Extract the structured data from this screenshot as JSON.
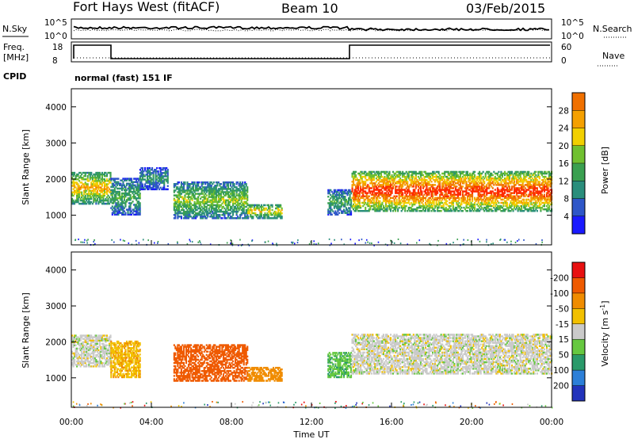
{
  "header": {
    "station": "Fort Hays West (fitACF)",
    "beam": "Beam 10",
    "date": "03/Feb/2015"
  },
  "noise_panel": {
    "left_label": "N.Sky",
    "right_label": "N.Search",
    "left_ticks": [
      "10^5",
      "10^0"
    ],
    "right_ticks": [
      "10^5",
      "10^0"
    ]
  },
  "freq_panel": {
    "left_label_line1": "Freq.",
    "left_label_line2": "[MHz]",
    "right_label": "Nave",
    "left_ticks": [
      "18",
      "8"
    ],
    "right_ticks": [
      "60",
      "0"
    ]
  },
  "cpid": {
    "label": "CPID",
    "value": "normal (fast) 151 IF"
  },
  "axes": {
    "ylabel": "Slant Range [km]",
    "xlabel": "Time UT",
    "yticks": [
      "1000",
      "2000",
      "3000",
      "4000"
    ],
    "xticks": [
      "00:00",
      "04:00",
      "08:00",
      "12:00",
      "16:00",
      "20:00",
      "00:00"
    ]
  },
  "colors": {
    "power": [
      "#1a1aff",
      "#2e56c8",
      "#2a8e7c",
      "#3aa050",
      "#70c030",
      "#f2d000",
      "#f5a000",
      "#f07000",
      "#ff2a00"
    ],
    "velocity": [
      "#2233bb",
      "#2c7fd8",
      "#2a9a6a",
      "#66c840",
      "#cacaca",
      "#f2c000",
      "#f08c00",
      "#ef5a00",
      "#e81010"
    ]
  },
  "chart_data": [
    {
      "type": "heatmap",
      "title": "Power",
      "colorbar_label": "Power [dB]",
      "colorbar_ticks": [
        "4",
        "8",
        "12",
        "16",
        "20",
        "24",
        "28"
      ],
      "clim": [
        0,
        30
      ],
      "x_range_hours": [
        0,
        24
      ],
      "y_range_km": [
        180,
        4500
      ],
      "blobs": [
        {
          "t0": 0.0,
          "t1": 1.95,
          "r0": 1300,
          "r1": 2200,
          "peak": 22
        },
        {
          "t0": 1.95,
          "t1": 3.4,
          "r0": 1000,
          "r1": 2000,
          "peak": 12
        },
        {
          "t0": 3.4,
          "t1": 4.8,
          "r0": 1700,
          "r1": 2300,
          "peak": 10
        },
        {
          "t0": 5.1,
          "t1": 8.8,
          "r0": 900,
          "r1": 1900,
          "peak": 16
        },
        {
          "t0": 8.8,
          "t1": 10.5,
          "r0": 900,
          "r1": 1300,
          "peak": 20
        },
        {
          "t0": 12.8,
          "t1": 14.0,
          "r0": 1000,
          "r1": 1700,
          "peak": 12
        },
        {
          "t0": 14.0,
          "t1": 24.0,
          "r0": 1100,
          "r1": 2200,
          "peak": 30
        }
      ]
    },
    {
      "type": "heatmap",
      "title": "Velocity",
      "colorbar_label": "Velocity [m s^-1]",
      "colorbar_ticks": [
        "-200",
        "-100",
        "-50",
        "-15",
        "15",
        "50",
        "100",
        "200"
      ],
      "clim": [
        -250,
        250
      ],
      "x_range_hours": [
        0,
        24
      ],
      "y_range_km": [
        180,
        4500
      ],
      "blobs": [
        {
          "t0": 0.0,
          "t1": 1.95,
          "r0": 1300,
          "r1": 2200,
          "v": 0
        },
        {
          "t0": 1.95,
          "t1": 3.4,
          "r0": 1000,
          "r1": 2000,
          "v": -40
        },
        {
          "t0": 5.1,
          "t1": 8.8,
          "r0": 900,
          "r1": 1900,
          "v": -150
        },
        {
          "t0": 8.8,
          "t1": 10.5,
          "r0": 900,
          "r1": 1300,
          "v": -80
        },
        {
          "t0": 12.8,
          "t1": 14.0,
          "r0": 1000,
          "r1": 1700,
          "v": 40
        },
        {
          "t0": 14.0,
          "t1": 24.0,
          "r0": 1100,
          "r1": 2200,
          "v": 0
        }
      ]
    }
  ]
}
